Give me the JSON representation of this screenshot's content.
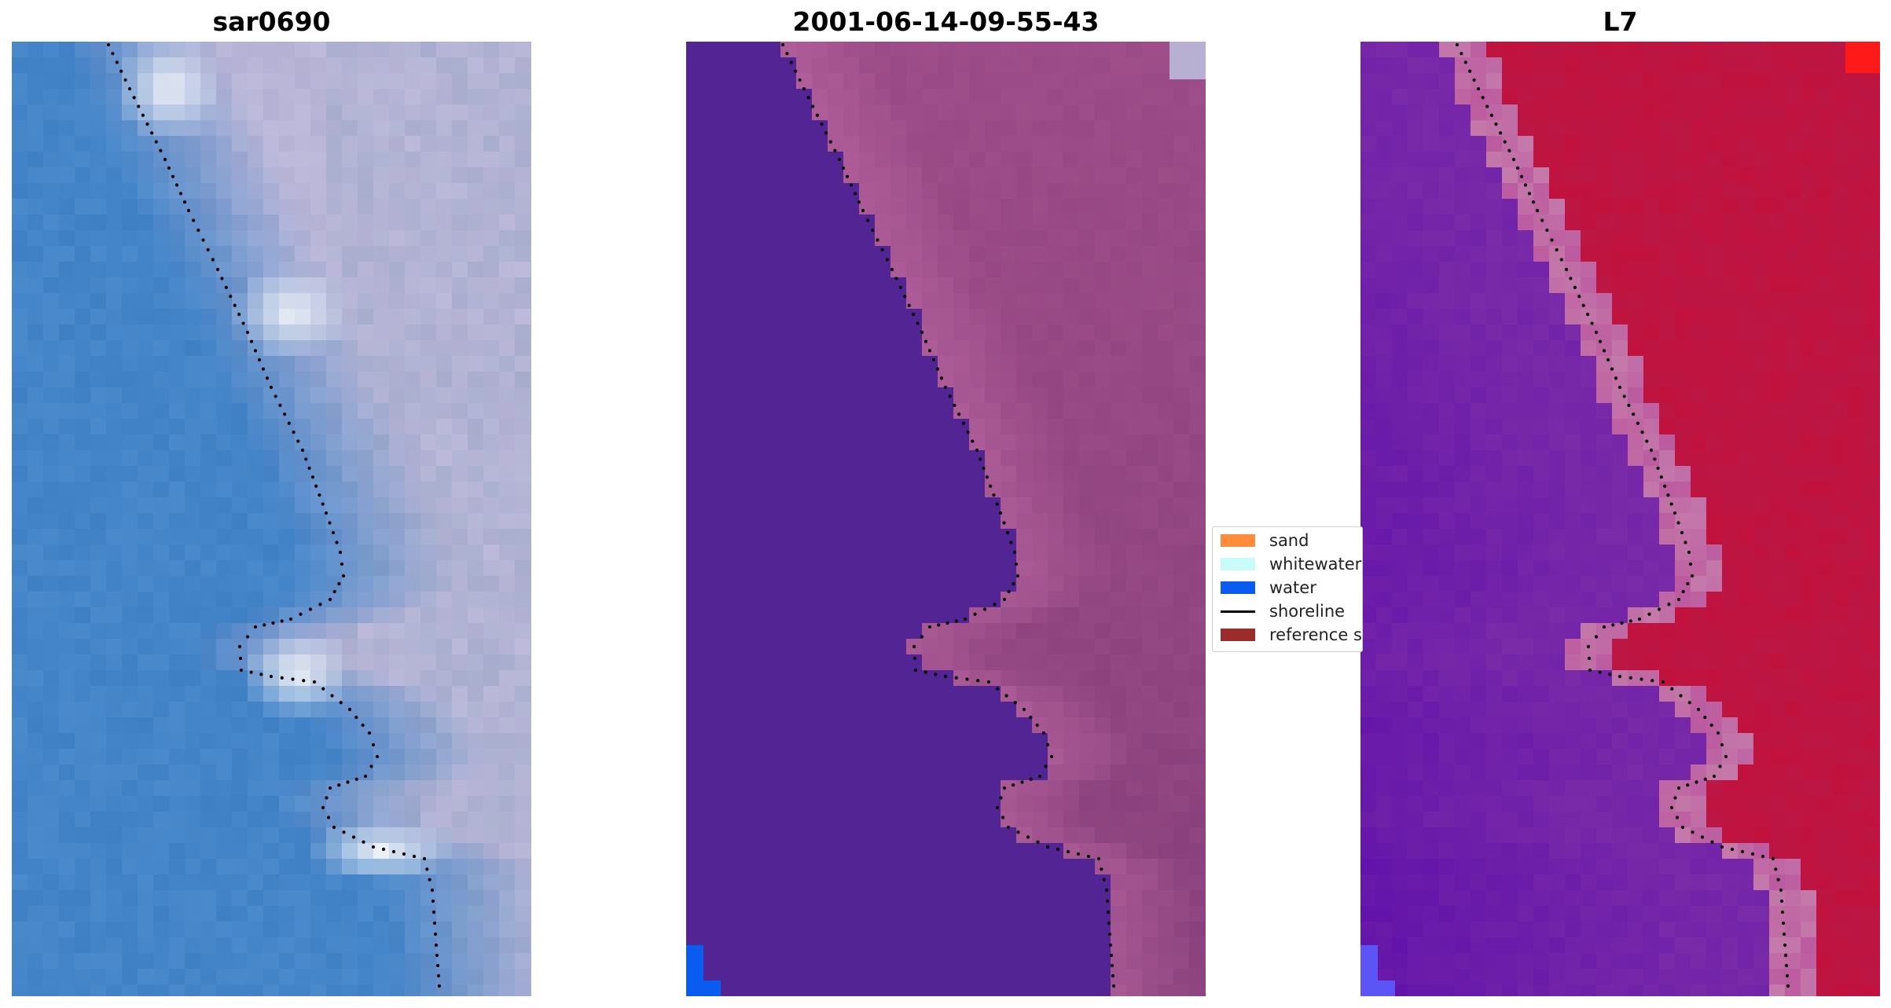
{
  "panels": [
    {
      "id": "rgb",
      "title": "sar0690"
    },
    {
      "id": "classified",
      "title": "2001-06-14-09-55-43"
    },
    {
      "id": "mndwi",
      "title": "L7"
    }
  ],
  "legend": {
    "entries": [
      {
        "label": "sand",
        "color": "#ff8c3a",
        "kind": "patch"
      },
      {
        "label": "whitewater",
        "color": "#c9fbfb",
        "kind": "patch"
      },
      {
        "label": "water",
        "color": "#0a5cf0",
        "kind": "patch"
      },
      {
        "label": "shoreline",
        "color": "#000000",
        "kind": "line"
      },
      {
        "label": "reference s",
        "color": "#9b2c2c",
        "kind": "patch"
      }
    ]
  },
  "colors": {
    "ocean_blue": "#3f7fc4",
    "land_lavender": "#b3b0d3",
    "classified_water": "#532494",
    "classified_land": "#9a4a86",
    "index_water": "#7a2ba8",
    "index_land": "#c1123e",
    "shoreline_dots": "#000000"
  }
}
